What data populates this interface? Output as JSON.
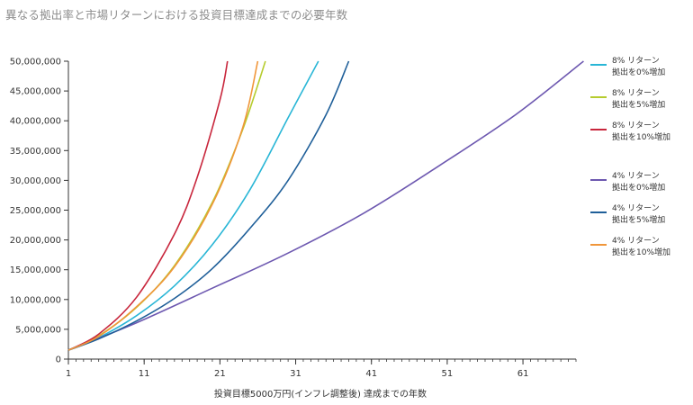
{
  "chart_data": {
    "type": "line",
    "title": "異なる拠出率と市場リターンにおける投資目標達成までの必要年数",
    "xlabel": "投資目標5000万円(インフレ調整後) 達成までの年数",
    "ylabel": "",
    "xlim": [
      1,
      68
    ],
    "ylim": [
      0,
      50000000
    ],
    "x_ticks": [
      1,
      11,
      21,
      31,
      41,
      51,
      61
    ],
    "y_ticks": [
      0,
      5000000,
      10000000,
      15000000,
      20000000,
      25000000,
      30000000,
      35000000,
      40000000,
      45000000,
      50000000
    ],
    "y_tick_labels": [
      "0",
      "5,000,000",
      "10,000,000",
      "15,000,000",
      "20,000,000",
      "25,000,000",
      "30,000,000",
      "35,000,000",
      "40,000,000",
      "45,000,000",
      "50,000,000"
    ],
    "grid": false,
    "legend_position": "right",
    "series": [
      {
        "name": "8% リターン\n拠出を0%増加",
        "color": "#29b6d6",
        "x": [
          1,
          5,
          10,
          15,
          20,
          25,
          30,
          34
        ],
        "values": [
          1500000,
          3600000,
          7300000,
          12300000,
          19200000,
          28500000,
          40500000,
          50000000
        ]
      },
      {
        "name": "8% リターン\n拠出を5%増加",
        "color": "#b6cc2e",
        "x": [
          1,
          5,
          10,
          15,
          20,
          24,
          27
        ],
        "values": [
          1500000,
          3900000,
          8700000,
          15700000,
          26300000,
          38500000,
          50000000
        ]
      },
      {
        "name": "8% リターン\n拠出を10%増加",
        "color": "#c8263c",
        "x": [
          1,
          5,
          10,
          15,
          18,
          21,
          22
        ],
        "values": [
          1500000,
          4200000,
          10400000,
          21000000,
          30500000,
          43500000,
          50000000
        ]
      },
      {
        "name": "4% リターン\n拠出を0%増加",
        "color": "#6d58b0",
        "x": [
          1,
          10,
          20,
          30,
          40,
          50,
          60,
          69
        ],
        "values": [
          1500000,
          6100000,
          11900000,
          17800000,
          24500000,
          32500000,
          41000000,
          50000000
        ]
      },
      {
        "name": "4% リターン\n拠出を5%増加",
        "color": "#1f5f99",
        "x": [
          1,
          5,
          10,
          15,
          20,
          25,
          30,
          35,
          38
        ],
        "values": [
          1500000,
          3400000,
          6400000,
          10200000,
          15200000,
          22000000,
          30000000,
          41000000,
          50000000
        ]
      },
      {
        "name": "4% リターン\n拠出を10%増加",
        "color": "#f0963a",
        "x": [
          1,
          5,
          10,
          15,
          20,
          24,
          26
        ],
        "values": [
          1500000,
          3800000,
          8800000,
          15500000,
          26000000,
          38800000,
          50000000
        ]
      }
    ]
  }
}
